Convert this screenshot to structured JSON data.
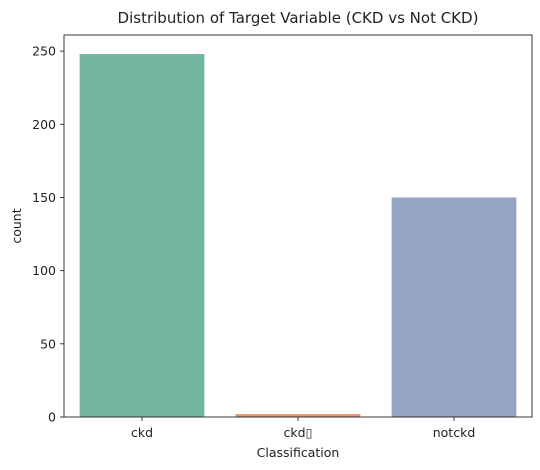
{
  "chart_data": {
    "type": "bar",
    "title": "Distribution of Target Variable (CKD vs Not CKD)",
    "xlabel": "Classification",
    "ylabel": "count",
    "categories": [
      "ckd",
      "ckd\t",
      "notckd"
    ],
    "category_labels": [
      "ckd",
      "ckd▯",
      "notckd"
    ],
    "values": [
      248,
      2,
      150
    ],
    "colors": [
      "#72b6a1",
      "#e5946e",
      "#95a5c5"
    ],
    "ylim": [
      0,
      261
    ],
    "yticks": [
      0,
      50,
      100,
      150,
      200,
      250
    ],
    "grid": false,
    "legend": "none"
  }
}
